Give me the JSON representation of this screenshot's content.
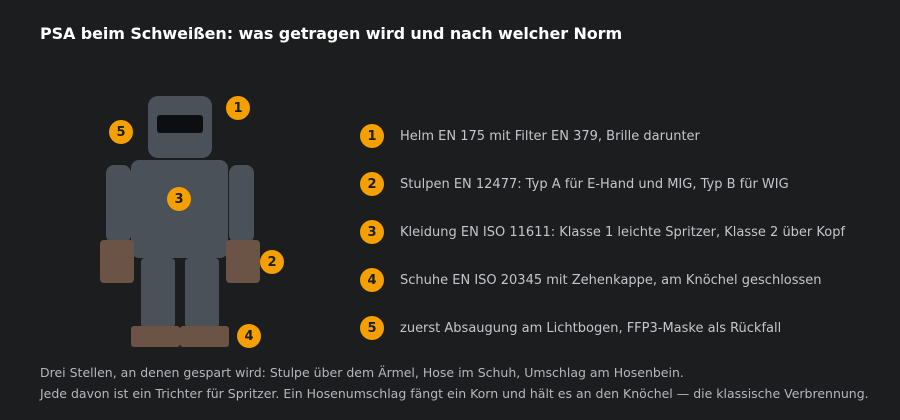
{
  "title": "PSA beim Schweißen: was getragen wird und nach welcher Norm",
  "figure": {
    "markers": [
      "1",
      "2",
      "3",
      "4",
      "5"
    ]
  },
  "legend": [
    {
      "num": "1",
      "text": "Helm EN 175 mit Filter EN 379, Brille darunter"
    },
    {
      "num": "2",
      "text": "Stulpen EN 12477: Typ A für E-Hand und MIG, Typ B für WIG"
    },
    {
      "num": "3",
      "text": "Kleidung EN ISO 11611: Klasse 1 leichte Spritzer, Klasse 2 über Kopf"
    },
    {
      "num": "4",
      "text": "Schuhe EN ISO 20345 mit Zehenkappe, am Knöchel geschlossen"
    },
    {
      "num": "5",
      "text": "zuerst Absaugung am Lichtbogen, FFP3-Maske als Rückfall"
    }
  ],
  "footer": {
    "line1": "Drei Stellen, an denen gespart wird: Stulpe über dem Ärmel, Hose im Schuh, Umschlag am Hosenbein.",
    "line2": "Jede davon ist ein Trichter für Spritzer. Ein Hosenumschlag fängt ein Korn und hält es an den Knöchel — die klassische Verbrennung."
  },
  "colors": {
    "background": "#1b1d1f",
    "body": "#4b5158",
    "leather": "#6b5445",
    "badge": "#f5a000"
  }
}
